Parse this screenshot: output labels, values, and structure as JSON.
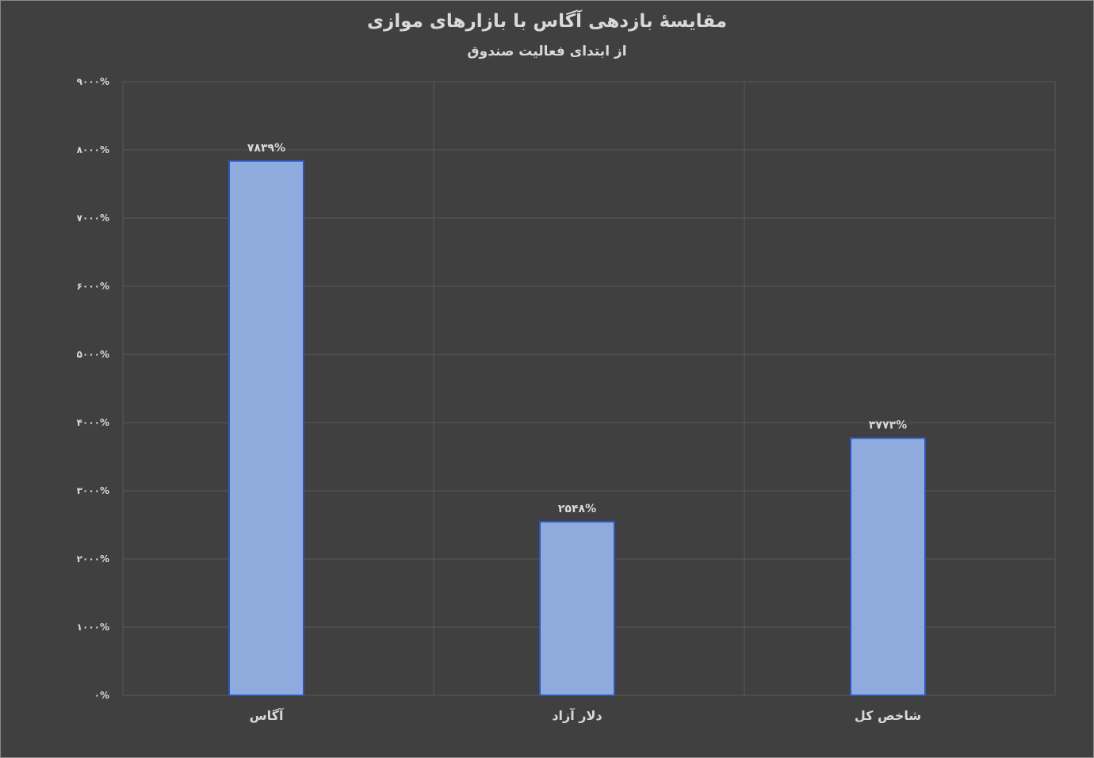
{
  "chart_data": {
    "type": "bar",
    "title": "مقایسهٔ بازدهی آگاس با بازارهای موازی",
    "subtitle": "از ابتدای فعالیت صندوق",
    "categories": [
      "آگاس",
      "دلار آزاد",
      "شاخص کل"
    ],
    "values": [
      7839,
      2548,
      3773
    ],
    "data_labels": [
      "۷۸۳۹%",
      "۲۵۴۸%",
      "۳۷۷۳%"
    ],
    "ylim": [
      0,
      9000
    ],
    "y_ticks": [
      0,
      1000,
      2000,
      3000,
      4000,
      5000,
      6000,
      7000,
      8000,
      9000
    ],
    "y_tick_labels": [
      "۰%",
      "۱۰۰۰%",
      "۲۰۰۰%",
      "۳۰۰۰%",
      "۴۰۰۰%",
      "۵۰۰۰%",
      "۶۰۰۰%",
      "۷۰۰۰%",
      "۸۰۰۰%",
      "۹۰۰۰%"
    ],
    "xlabel": "",
    "ylabel": "",
    "grid": true,
    "legend": "none",
    "colors": {
      "background": "#404040",
      "bar_fill": "#8faadc",
      "bar_stroke": "#2f55b8",
      "grid": "#595959",
      "text": "#d9d9d9"
    }
  }
}
